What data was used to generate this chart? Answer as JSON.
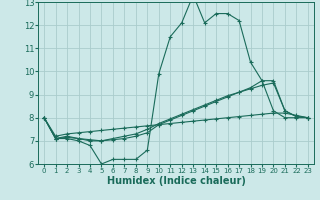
{
  "xlabel": "Humidex (Indice chaleur)",
  "background_color": "#cce8e8",
  "grid_color": "#aacccc",
  "line_color": "#1a6b5a",
  "xlim": [
    -0.5,
    23.5
  ],
  "ylim": [
    6,
    13
  ],
  "xticks": [
    0,
    1,
    2,
    3,
    4,
    5,
    6,
    7,
    8,
    9,
    10,
    11,
    12,
    13,
    14,
    15,
    16,
    17,
    18,
    19,
    20,
    21,
    22,
    23
  ],
  "yticks": [
    6,
    7,
    8,
    9,
    10,
    11,
    12,
    13
  ],
  "line1_x": [
    0,
    1,
    2,
    3,
    4,
    5,
    6,
    7,
    8,
    9,
    10,
    11,
    12,
    13,
    14,
    15,
    16,
    17,
    18,
    19,
    20,
    21,
    22,
    23
  ],
  "line1_y": [
    8.0,
    7.1,
    7.1,
    7.0,
    6.8,
    6.0,
    6.2,
    6.2,
    6.2,
    6.6,
    9.9,
    11.5,
    12.1,
    13.3,
    12.1,
    12.5,
    12.5,
    12.2,
    10.4,
    9.6,
    8.3,
    8.0,
    8.0,
    8.0
  ],
  "line2_x": [
    0,
    1,
    2,
    3,
    4,
    5,
    6,
    7,
    8,
    9,
    10,
    11,
    12,
    13,
    14,
    15,
    16,
    17,
    18,
    19,
    20,
    21,
    22,
    23
  ],
  "line2_y": [
    8.0,
    7.1,
    7.2,
    7.1,
    7.0,
    7.0,
    7.05,
    7.1,
    7.2,
    7.35,
    7.7,
    7.9,
    8.1,
    8.3,
    8.5,
    8.7,
    8.9,
    9.1,
    9.3,
    9.6,
    9.6,
    8.3,
    8.05,
    8.0
  ],
  "line3_x": [
    0,
    1,
    2,
    3,
    4,
    5,
    6,
    7,
    8,
    9,
    10,
    11,
    12,
    13,
    14,
    15,
    16,
    17,
    18,
    19,
    20,
    21,
    22,
    23
  ],
  "line3_y": [
    8.0,
    7.1,
    7.15,
    7.1,
    7.05,
    7.0,
    7.1,
    7.2,
    7.3,
    7.5,
    7.75,
    7.95,
    8.15,
    8.35,
    8.55,
    8.75,
    8.95,
    9.1,
    9.25,
    9.4,
    9.5,
    8.3,
    8.05,
    8.0
  ],
  "line4_x": [
    0,
    1,
    2,
    3,
    4,
    5,
    6,
    7,
    8,
    9,
    10,
    11,
    12,
    13,
    14,
    15,
    16,
    17,
    18,
    19,
    20,
    21,
    22,
    23
  ],
  "line4_y": [
    8.0,
    7.2,
    7.3,
    7.35,
    7.4,
    7.45,
    7.5,
    7.55,
    7.6,
    7.65,
    7.7,
    7.75,
    7.8,
    7.85,
    7.9,
    7.95,
    8.0,
    8.05,
    8.1,
    8.15,
    8.2,
    8.2,
    8.1,
    8.0
  ]
}
